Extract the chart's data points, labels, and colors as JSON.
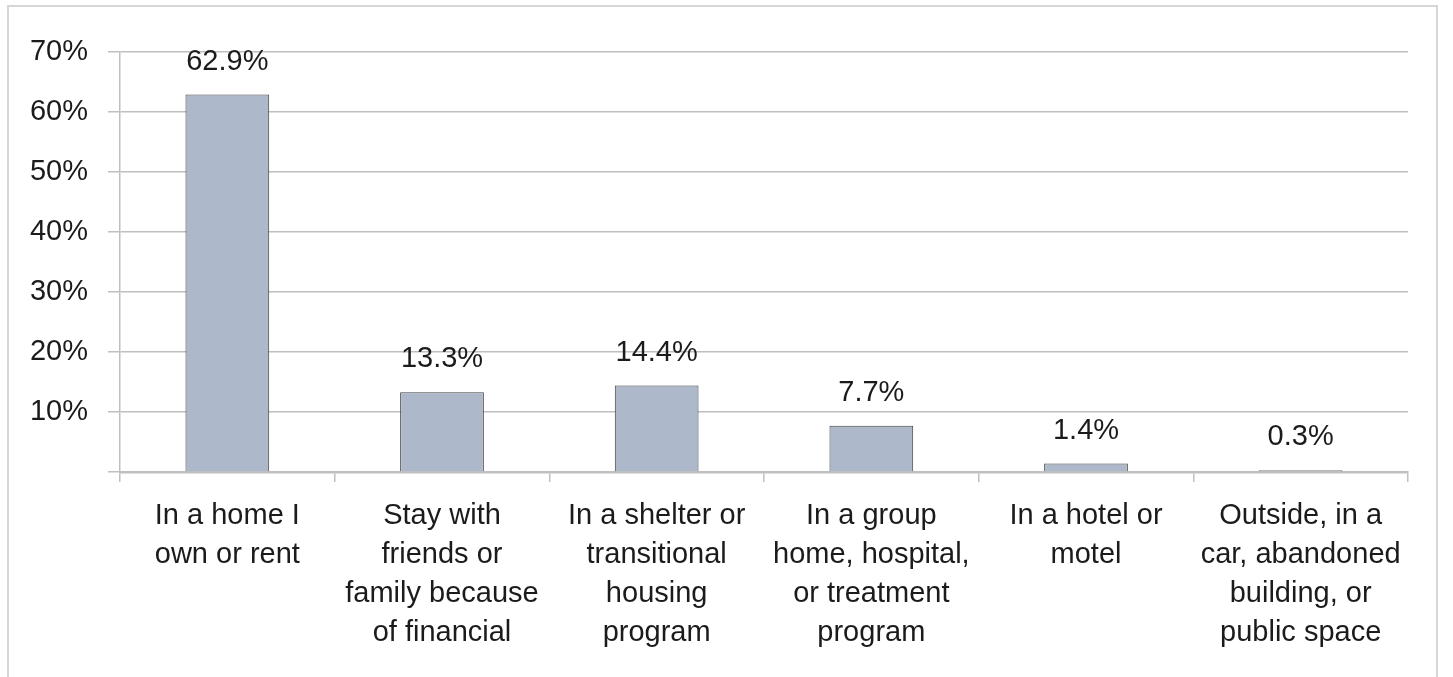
{
  "chart_data": {
    "type": "bar",
    "categories": [
      "In a home I own or rent",
      "Stay with friends or family because of financial",
      "In a shelter or transitional housing program",
      "In a group home, hospital, or treatment program",
      "In a hotel or motel",
      "Outside, in a car, abandoned building, or public space"
    ],
    "values": [
      62.9,
      13.3,
      14.4,
      7.7,
      1.4,
      0.3
    ],
    "color": "#adb9ca",
    "value_labels": [
      "62.9%",
      "13.3%",
      "14.4%",
      "7.7%",
      "1.4%",
      "0.3%"
    ],
    "ylim": [
      0,
      70
    ],
    "yticks": [
      {
        "value": 0,
        "label": null
      },
      {
        "value": 10,
        "label": "10%"
      },
      {
        "value": 20,
        "label": "20%"
      },
      {
        "value": 30,
        "label": "30%"
      },
      {
        "value": 40,
        "label": "40%"
      },
      {
        "value": 50,
        "label": "50%"
      },
      {
        "value": 60,
        "label": "60%"
      },
      {
        "value": 70,
        "label": "70%"
      }
    ],
    "grid": "y"
  }
}
